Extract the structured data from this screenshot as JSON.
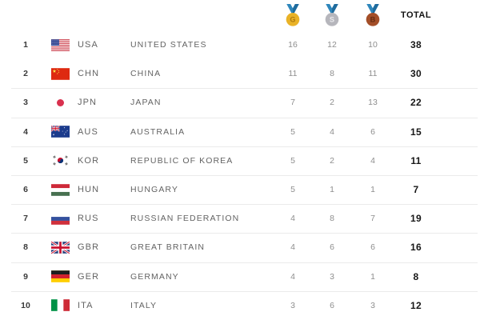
{
  "header": {
    "total_label": "TOTAL",
    "medals": {
      "ribbon_color": "#2E86BB",
      "ribbon_shade_color": "#1F6C9E",
      "gold": {
        "letter": "G",
        "color": "#E9B227",
        "letter_color": "#AE7A0E",
        "icon": "gold-medal-icon"
      },
      "silver": {
        "letter": "S",
        "color": "#B6B6BC",
        "letter_color": "#E9E9EC",
        "icon": "silver-medal-icon"
      },
      "bronze": {
        "letter": "B",
        "color": "#A34E28",
        "letter_color": "#642B10",
        "icon": "bronze-medal-icon"
      }
    }
  },
  "table": {
    "columns": [
      "rank",
      "flag",
      "code",
      "country",
      "gold",
      "silver",
      "bronze",
      "total"
    ],
    "rows": [
      {
        "rank": "1",
        "code": "USA",
        "country": "UNITED STATES",
        "gold": "16",
        "silver": "12",
        "bronze": "10",
        "total": "38"
      },
      {
        "rank": "2",
        "code": "CHN",
        "country": "CHINA",
        "gold": "11",
        "silver": "8",
        "bronze": "11",
        "total": "30"
      },
      {
        "rank": "3",
        "code": "JPN",
        "country": "JAPAN",
        "gold": "7",
        "silver": "2",
        "bronze": "13",
        "total": "22"
      },
      {
        "rank": "4",
        "code": "AUS",
        "country": "AUSTRALIA",
        "gold": "5",
        "silver": "4",
        "bronze": "6",
        "total": "15"
      },
      {
        "rank": "5",
        "code": "KOR",
        "country": "REPUBLIC OF KOREA",
        "gold": "5",
        "silver": "2",
        "bronze": "4",
        "total": "11"
      },
      {
        "rank": "6",
        "code": "HUN",
        "country": "HUNGARY",
        "gold": "5",
        "silver": "1",
        "bronze": "1",
        "total": "7"
      },
      {
        "rank": "7",
        "code": "RUS",
        "country": "RUSSIAN FEDERATION",
        "gold": "4",
        "silver": "8",
        "bronze": "7",
        "total": "19"
      },
      {
        "rank": "8",
        "code": "GBR",
        "country": "GREAT BRITAIN",
        "gold": "4",
        "silver": "6",
        "bronze": "6",
        "total": "16"
      },
      {
        "rank": "9",
        "code": "GER",
        "country": "GERMANY",
        "gold": "4",
        "silver": "3",
        "bronze": "1",
        "total": "8"
      },
      {
        "rank": "10",
        "code": "ITA",
        "country": "ITALY",
        "gold": "3",
        "silver": "6",
        "bronze": "3",
        "total": "12"
      }
    ]
  }
}
